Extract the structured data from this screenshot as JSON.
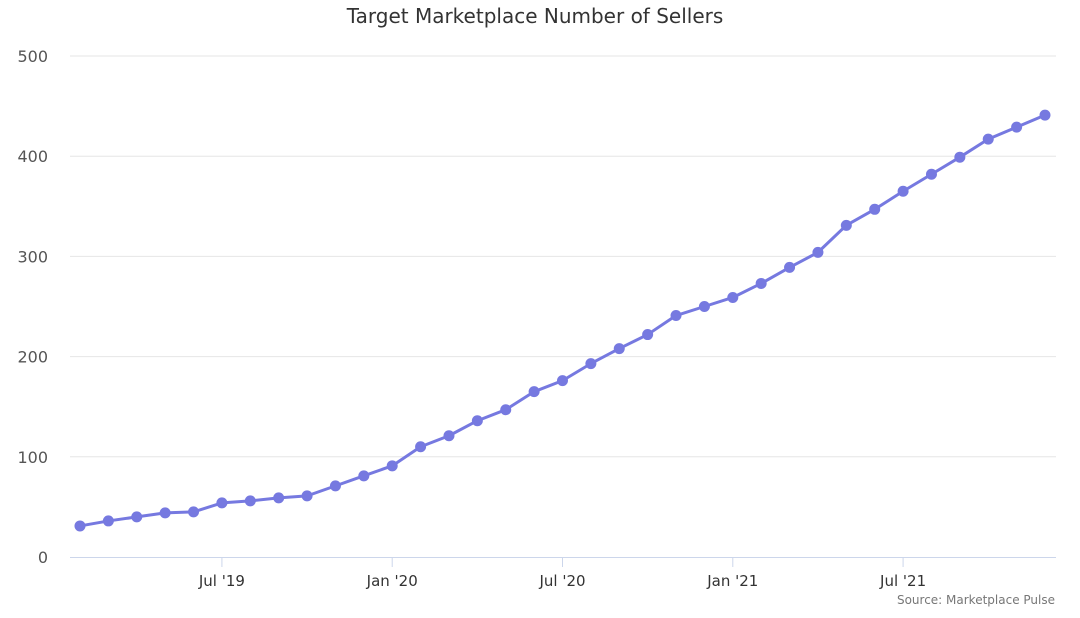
{
  "chart_data": {
    "type": "line",
    "title": "Target Marketplace Number of Sellers",
    "xlabel": "",
    "ylabel": "",
    "ylim": [
      0,
      500
    ],
    "yticks": [
      0,
      100,
      200,
      300,
      400,
      500
    ],
    "x_tick_labels": [
      "Jul '19",
      "Jan '20",
      "Jul '20",
      "Jan '21",
      "Jul '21"
    ],
    "grid": true,
    "legend": "none",
    "credit": "Source: Marketplace Pulse",
    "colors": {
      "line": "#7679e0",
      "grid": "#e6e6e6",
      "axis": "#ccd6eb"
    },
    "series": [
      {
        "name": "Number of Sellers",
        "x": [
          "Feb '19",
          "Mar '19",
          "Apr '19",
          "May '19",
          "Jun '19",
          "Jul '19",
          "Aug '19",
          "Sep '19",
          "Oct '19",
          "Nov '19",
          "Dec '19",
          "Jan '20",
          "Feb '20",
          "Mar '20",
          "Apr '20",
          "May '20",
          "Jun '20",
          "Jul '20",
          "Aug '20",
          "Sep '20",
          "Oct '20",
          "Nov '20",
          "Dec '20",
          "Jan '21",
          "Feb '21",
          "Mar '21",
          "Apr '21",
          "May '21",
          "Jun '21",
          "Jul '21",
          "Aug '21",
          "Sep '21",
          "Oct '21",
          "Nov '21",
          "Dec '21"
        ],
        "values": [
          31,
          36,
          40,
          44,
          45,
          54,
          56,
          59,
          61,
          71,
          81,
          91,
          110,
          121,
          136,
          147,
          165,
          176,
          193,
          208,
          222,
          241,
          250,
          259,
          273,
          289,
          304,
          331,
          347,
          365,
          382,
          399,
          417,
          429,
          441
        ]
      }
    ]
  }
}
